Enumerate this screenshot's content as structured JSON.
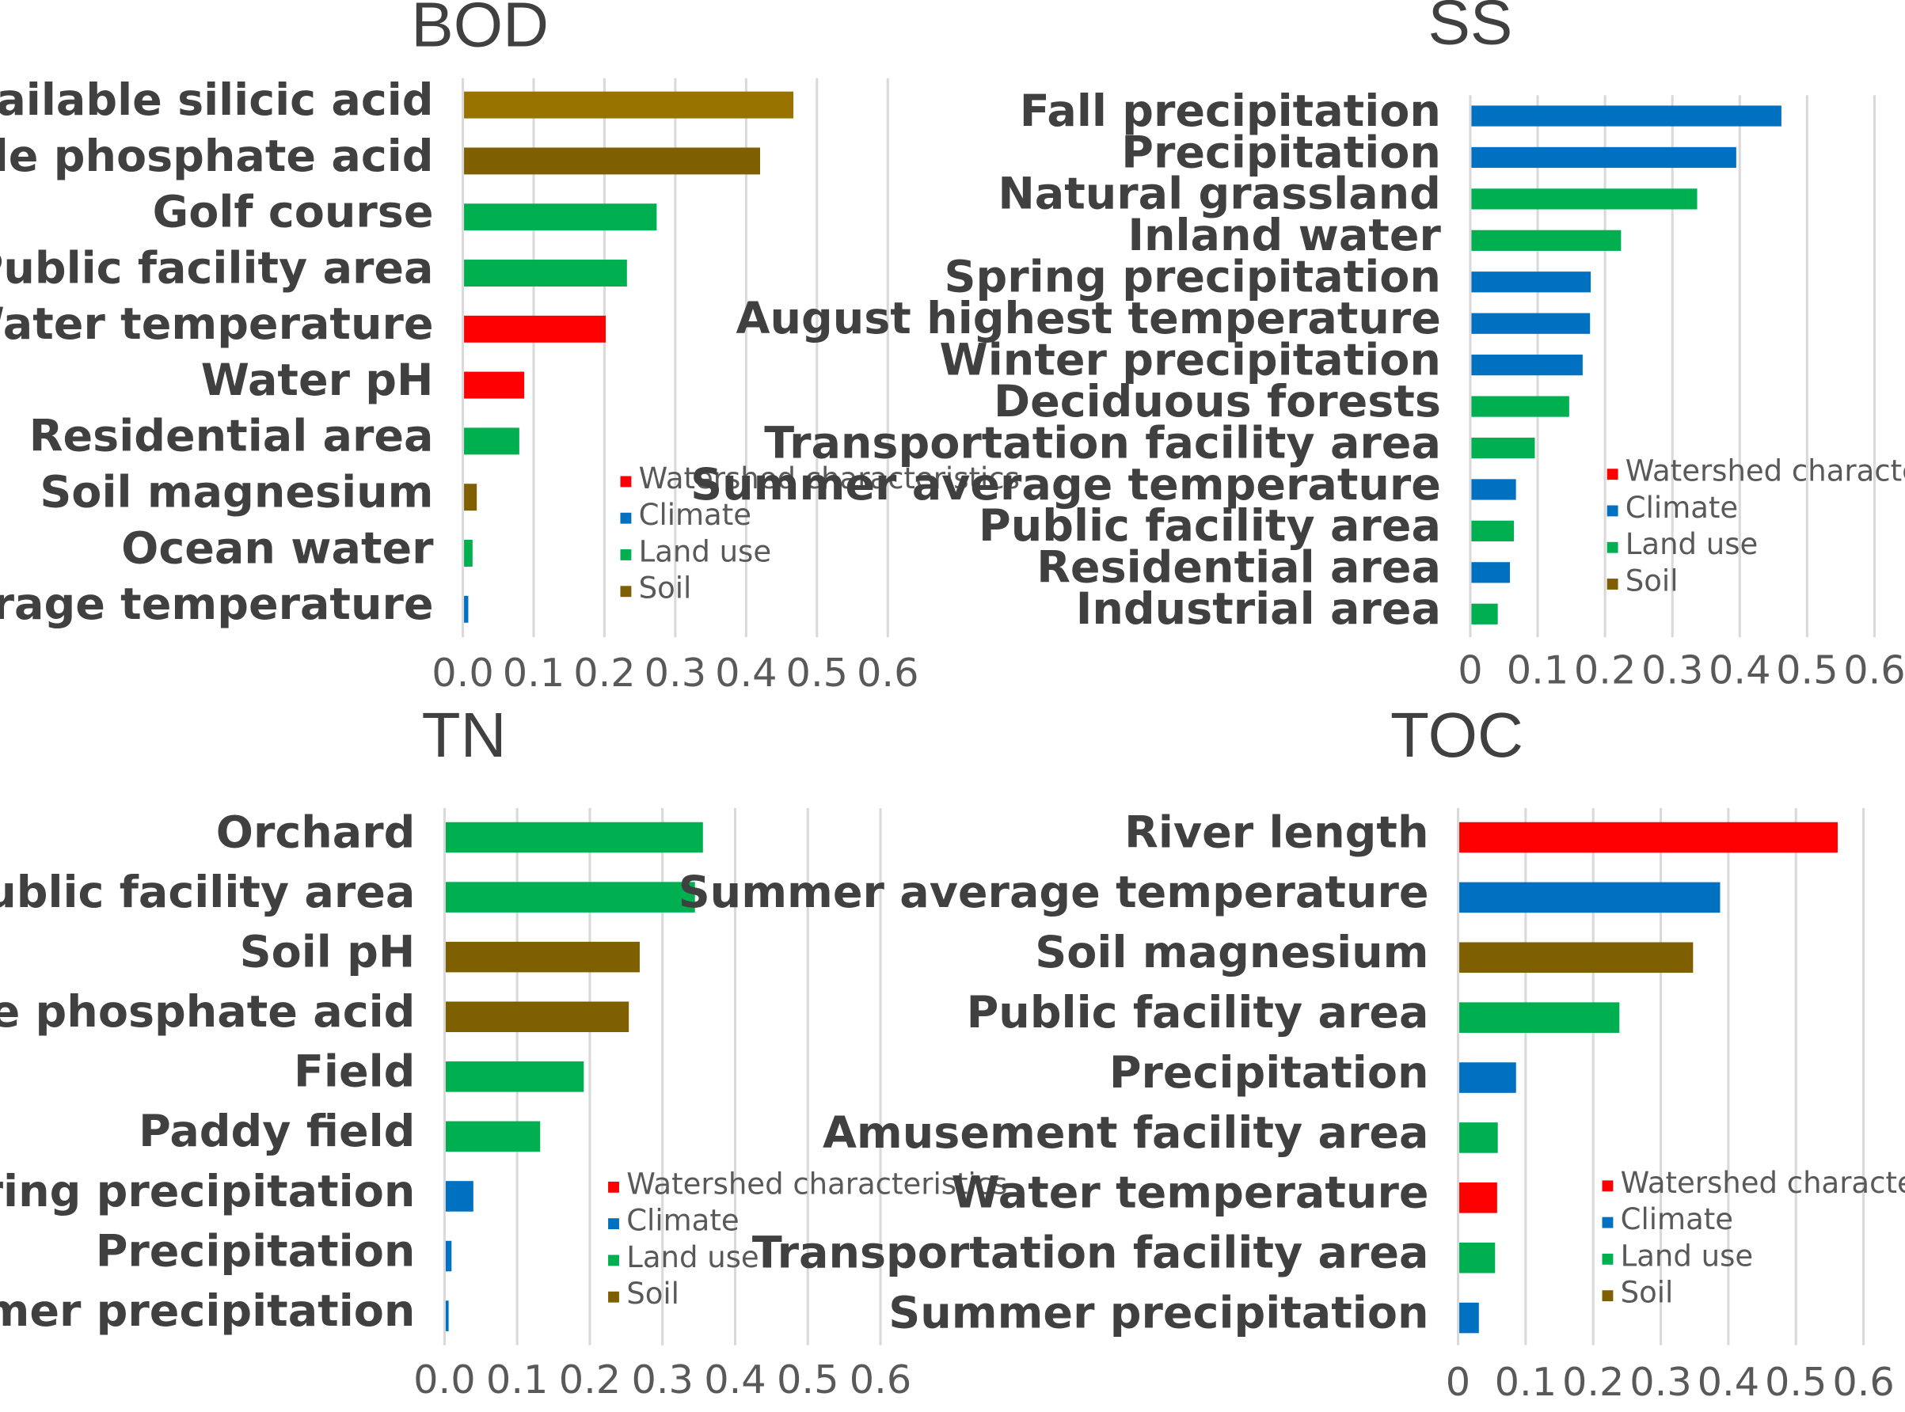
{
  "colors": {
    "watershed": "#ff0000",
    "climate": "#0070c0",
    "land": "#00b050",
    "soil": "#7f6000",
    "soil_light": "#997300"
  },
  "legend": [
    "Watershed characteristics",
    "Climate",
    "Land use",
    "Soil"
  ],
  "chart_data": [
    {
      "type": "bar",
      "title": "BOD",
      "xlim": [
        0,
        0.6
      ],
      "ticks": [
        "0.0",
        "0.1",
        "0.2",
        "0.3",
        "0.4",
        "0.5",
        "0.6"
      ],
      "categories": [
        "Soil available silicic acid",
        "Soil available phosphate acid",
        "Golf course",
        "Public facility area",
        "Water temperature",
        "Water pH",
        "Residential area",
        "Soil magnesium",
        "Ocean water",
        "Summer average temperature"
      ],
      "values": [
        0.465,
        0.418,
        0.272,
        0.23,
        0.2,
        0.085,
        0.078,
        0.018,
        0.012,
        0.006
      ],
      "groups": [
        "soil_light",
        "soil",
        "land",
        "land",
        "watershed",
        "watershed",
        "land",
        "soil",
        "land",
        "climate"
      ]
    },
    {
      "type": "bar",
      "title": "SS",
      "xlim": [
        0,
        0.6
      ],
      "ticks": [
        "0",
        "0.1",
        "0.2",
        "0.3",
        "0.4",
        "0.5",
        "0.6"
      ],
      "categories": [
        "Fall precipitation",
        "Precipitation",
        "Natural grassland",
        "Inland water",
        "Spring precipitation",
        "August highest temperature",
        "Winter precipitation",
        "Deciduous forests",
        "Transportation facility area",
        "Summer average temperature",
        "Public facility area",
        "Residential area",
        "Industrial area"
      ],
      "values": [
        0.46,
        0.393,
        0.335,
        0.222,
        0.177,
        0.176,
        0.165,
        0.145,
        0.094,
        0.066,
        0.063,
        0.057,
        0.039
      ],
      "groups": [
        "climate",
        "climate",
        "land",
        "land",
        "climate",
        "climate",
        "climate",
        "land",
        "land",
        "climate",
        "land",
        "climate",
        "land"
      ]
    },
    {
      "type": "bar",
      "title": "TN",
      "xlim": [
        0,
        0.6
      ],
      "ticks": [
        "0.0",
        "0.1",
        "0.2",
        "0.3",
        "0.4",
        "0.5",
        "0.6"
      ],
      "categories": [
        "Orchard",
        "Public facility area",
        "Soil pH",
        "Soil available phosphate acid",
        "Field",
        "Paddy field",
        "Spring precipitation",
        "Precipitation",
        "Summer precipitation"
      ],
      "values": [
        0.354,
        0.343,
        0.267,
        0.252,
        0.19,
        0.13,
        0.038,
        0.008,
        0.004
      ],
      "groups": [
        "land",
        "land",
        "soil",
        "soil",
        "land",
        "land",
        "climate",
        "climate",
        "climate"
      ]
    },
    {
      "type": "bar",
      "title": "TOC",
      "xlim": [
        0,
        0.6
      ],
      "ticks": [
        "0",
        "0.1",
        "0.2",
        "0.3",
        "0.4",
        "0.5",
        "0.6"
      ],
      "categories": [
        "River length",
        "Summer average temperature",
        "Soil magnesium",
        "Public facility area",
        "Precipitation",
        "Amusement facility area",
        "Water temperature",
        "Transportation facility area",
        "Summer precipitation"
      ],
      "values": [
        0.56,
        0.386,
        0.346,
        0.237,
        0.084,
        0.057,
        0.056,
        0.053,
        0.029
      ],
      "groups": [
        "watershed",
        "climate",
        "soil",
        "land",
        "climate",
        "land",
        "watershed",
        "land",
        "climate"
      ]
    }
  ]
}
